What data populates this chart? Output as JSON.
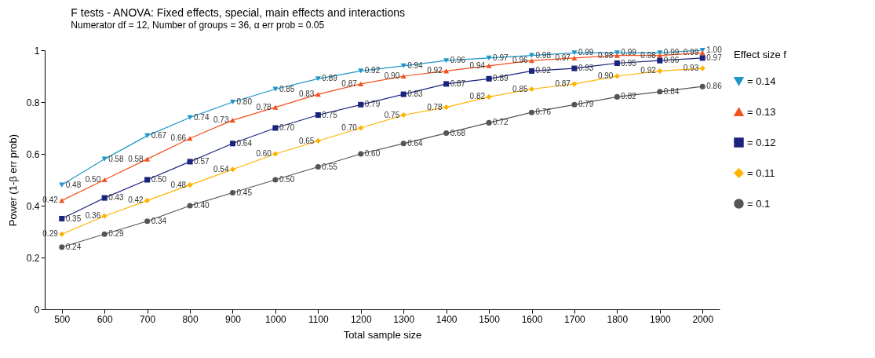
{
  "chart_data": {
    "type": "line",
    "title": "F tests - ANOVA: Fixed effects, special, main effects and interactions",
    "subtitle": "Numerator df = 12, Number of groups = 36, α err prob = 0.05",
    "xlabel": "Total sample size",
    "ylabel": "Power (1-β err prob)",
    "legend_title": "Effect size f",
    "legend": "right",
    "grid": false,
    "x": [
      500,
      600,
      700,
      800,
      900,
      1000,
      1100,
      1200,
      1300,
      1400,
      1500,
      1600,
      1700,
      1800,
      1900,
      2000
    ],
    "xlim": [
      460,
      2040
    ],
    "xticks": [
      500,
      600,
      700,
      800,
      900,
      1000,
      1100,
      1200,
      1300,
      1400,
      1500,
      1600,
      1700,
      1800,
      1900,
      2000
    ],
    "ylim": [
      0,
      1
    ],
    "yticks": [
      0,
      0.2,
      0.4,
      0.6,
      0.8,
      1
    ],
    "series": [
      {
        "name": "= 0.14",
        "color": "#1e96c8",
        "marker": "triangle-down",
        "values": [
          0.48,
          0.58,
          0.67,
          0.74,
          0.8,
          0.85,
          0.89,
          0.92,
          0.94,
          0.96,
          0.97,
          0.98,
          0.99,
          0.99,
          0.99,
          1.0
        ],
        "value_labels": [
          "0.48",
          "0.58",
          "0.67",
          "0.74",
          "0.80",
          "0.85",
          "0.89",
          "0.92",
          "0.94",
          "0.96",
          "0.97",
          "0.98",
          "0.99",
          "0.99",
          "0.99",
          "1.00"
        ]
      },
      {
        "name": "= 0.13",
        "color": "#f4511e",
        "marker": "triangle",
        "values": [
          0.42,
          0.5,
          0.58,
          0.66,
          0.73,
          0.78,
          0.83,
          0.87,
          0.9,
          0.92,
          0.94,
          0.96,
          0.97,
          0.98,
          0.98,
          0.99
        ],
        "value_labels": [
          "0.42",
          "0.50",
          "0.58",
          "0.66",
          "0.73",
          "0.78",
          "0.83",
          "0.87",
          "0.90",
          "0.92",
          "0.94",
          "0.96",
          "0.97",
          "0.98",
          "0.98",
          "0.99"
        ]
      },
      {
        "name": "= 0.12",
        "color": "#1a237e",
        "marker": "square",
        "values": [
          0.35,
          0.43,
          0.5,
          0.57,
          0.64,
          0.7,
          0.75,
          0.79,
          0.83,
          0.87,
          0.89,
          0.92,
          0.93,
          0.95,
          0.96,
          0.97
        ],
        "value_labels": [
          "0.35",
          "0.43",
          "0.50",
          "0.57",
          "0.64",
          "0.70",
          "0.75",
          "0.79",
          "0.83",
          "0.87",
          "0.89",
          "0.92",
          "0.93",
          "0.95",
          "0.96",
          "0.97"
        ]
      },
      {
        "name": "= 0.11",
        "color": "#ffb300",
        "marker": "diamond",
        "values": [
          0.29,
          0.36,
          0.42,
          0.48,
          0.54,
          0.6,
          0.65,
          0.7,
          0.75,
          0.78,
          0.82,
          0.85,
          0.87,
          0.9,
          0.92,
          0.93
        ],
        "value_labels": [
          "0.29",
          "0.36",
          "0.42",
          "0.48",
          "0.54",
          "0.60",
          "0.65",
          "0.70",
          "0.75",
          "0.78",
          "0.82",
          "0.85",
          "0.87",
          "0.90",
          "0.92",
          "0.93"
        ]
      },
      {
        "name": "= 0.1",
        "color": "#555555",
        "marker": "circle",
        "values": [
          0.24,
          0.29,
          0.34,
          0.4,
          0.45,
          0.5,
          0.55,
          0.6,
          0.64,
          0.68,
          0.72,
          0.76,
          0.79,
          0.82,
          0.84,
          0.86
        ],
        "value_labels": [
          "0.24",
          "0.29",
          "0.34",
          "0.40",
          "0.45",
          "0.50",
          "0.55",
          "0.60",
          "0.64",
          "0.68",
          "0.72",
          "0.76",
          "0.79",
          "0.82",
          "0.84",
          "0.86"
        ]
      }
    ]
  }
}
